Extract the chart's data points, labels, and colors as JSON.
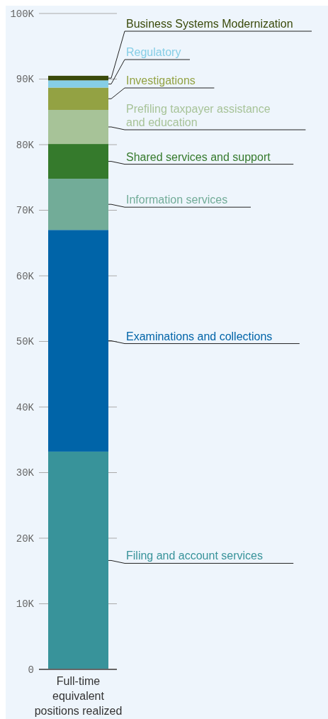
{
  "chart_data": {
    "type": "bar",
    "stacked": true,
    "categories": [
      "Full-time equivalent positions realized"
    ],
    "series": [
      {
        "name": "Filing and account services",
        "color": "#38939a",
        "values": [
          33200
        ]
      },
      {
        "name": "Examinations and collections",
        "color": "#0064a8",
        "values": [
          33800
        ]
      },
      {
        "name": "Information services",
        "color": "#72ac98",
        "values": [
          7800
        ]
      },
      {
        "name": "Shared services and support",
        "color": "#357a2c",
        "values": [
          5300
        ]
      },
      {
        "name": "Prefiling taxpayer assistance and education",
        "color": "#a7c398",
        "values": [
          5200
        ]
      },
      {
        "name": "Investigations",
        "color": "#93a243",
        "values": [
          3400
        ]
      },
      {
        "name": "Regulatory",
        "color": "#86cee6",
        "values": [
          1100
        ]
      },
      {
        "name": "Business Systems Modernization",
        "color": "#3a4a0a",
        "values": [
          700
        ]
      }
    ],
    "ylim": [
      0,
      100000
    ],
    "yticks": [
      {
        "value": 0,
        "label": "0"
      },
      {
        "value": 10000,
        "label": "10K"
      },
      {
        "value": 20000,
        "label": "20K"
      },
      {
        "value": 30000,
        "label": "30K"
      },
      {
        "value": 40000,
        "label": "40K"
      },
      {
        "value": 50000,
        "label": "50K"
      },
      {
        "value": 60000,
        "label": "60K"
      },
      {
        "value": 70000,
        "label": "70K"
      },
      {
        "value": 80000,
        "label": "80K"
      },
      {
        "value": 90000,
        "label": "90K"
      },
      {
        "value": 100000,
        "label": "100K"
      }
    ],
    "grid": "y"
  }
}
